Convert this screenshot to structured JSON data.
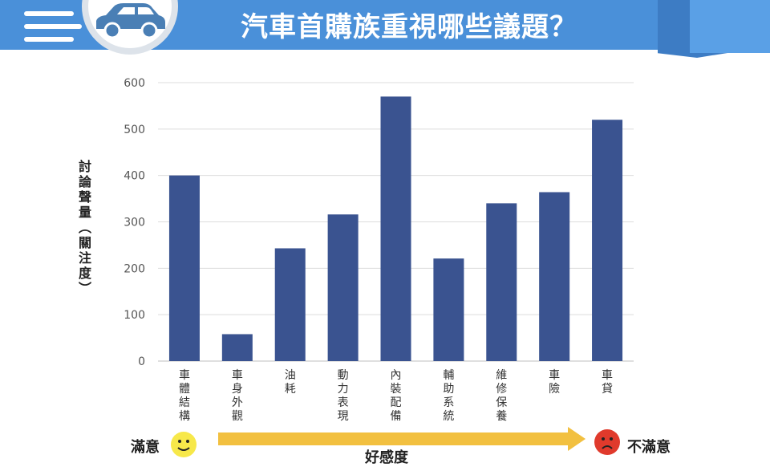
{
  "header": {
    "title": "汽車首購族重視哪些議題？",
    "icon": "car-icon",
    "banner_color": "#4a90d9"
  },
  "chart_data": {
    "type": "bar",
    "title": "",
    "ylabel": "討論聲量（關注度）",
    "xlabel": "",
    "ylim": [
      0,
      600
    ],
    "yticks": [
      0,
      100,
      200,
      300,
      400,
      500,
      600
    ],
    "grid": true,
    "bar_color": "#3a5390",
    "categories": [
      "車體結構",
      "車身外觀",
      "油耗",
      "動力表現",
      "內裝配備",
      "輔助系統",
      "維修保養",
      "車險",
      "車貸"
    ],
    "values": [
      400,
      58,
      243,
      316,
      570,
      221,
      340,
      364,
      520
    ]
  },
  "sentiment_axis": {
    "left_label": "滿意",
    "right_label": "不滿意",
    "caption": "好感度",
    "left_icon": "smiley-face-icon",
    "right_icon": "sad-face-icon",
    "arrow_color": "#f2c040"
  }
}
